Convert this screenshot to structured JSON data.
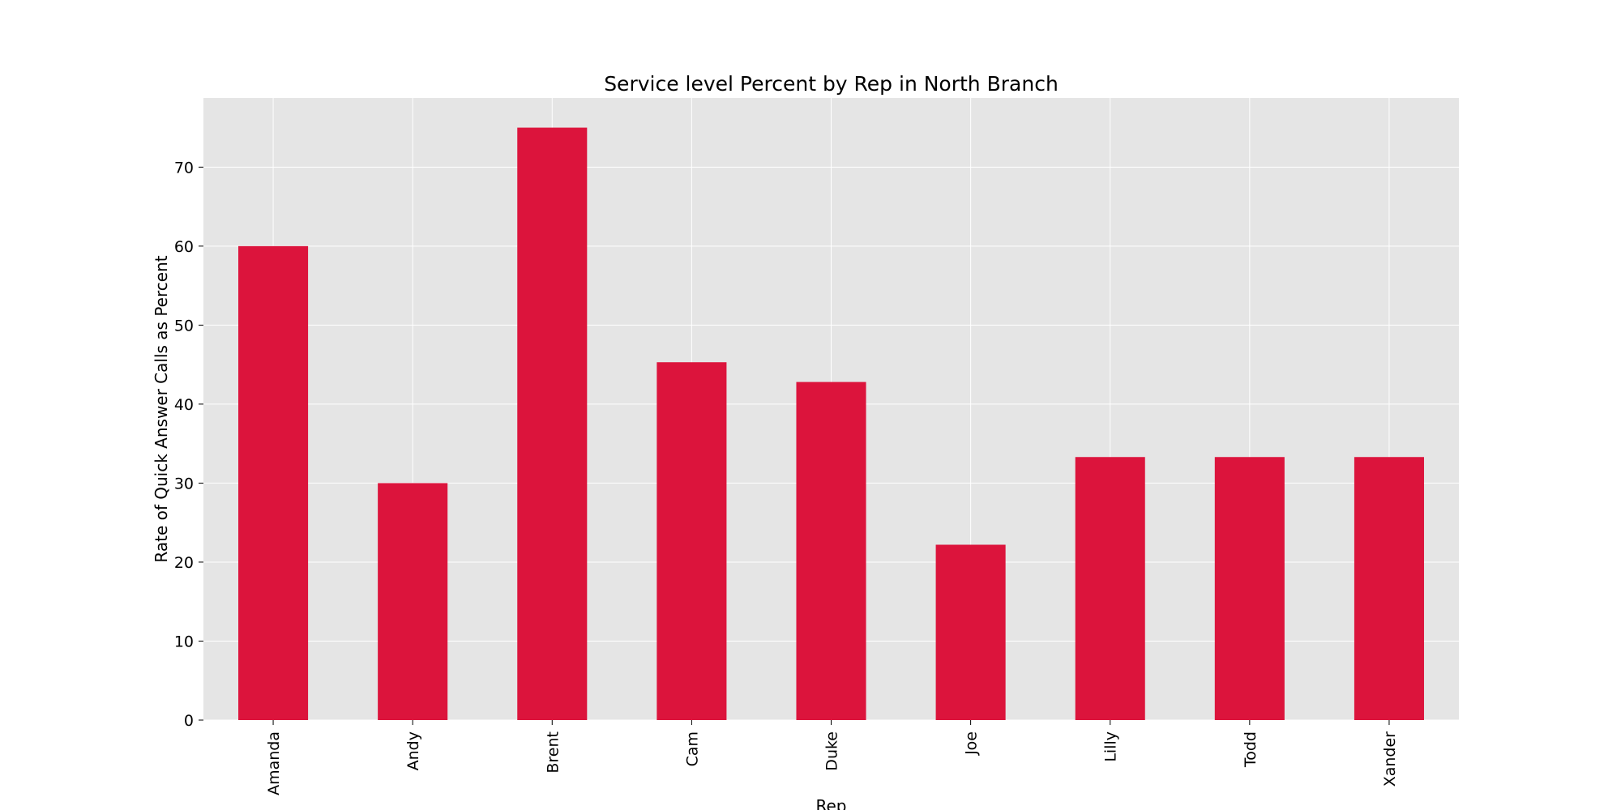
{
  "chart_data": {
    "type": "bar",
    "title": "Service level Percent by Rep in North Branch",
    "xlabel": "Rep",
    "ylabel": "Rate of Quick Answer Calls as Percent",
    "categories": [
      "Amanda",
      "Andy",
      "Brent",
      "Cam",
      "Duke",
      "Joe",
      "Lilly",
      "Todd",
      "Xander"
    ],
    "values": [
      60.0,
      30.0,
      75.0,
      45.3,
      42.8,
      22.2,
      33.3,
      33.3,
      33.3
    ],
    "ylim": [
      0,
      78.75
    ],
    "yticks": [
      0,
      10,
      20,
      30,
      40,
      50,
      60,
      70
    ],
    "grid": true,
    "legend": "none",
    "colors": {
      "bar": "#dc143c",
      "plot_background": "#e5e5e5",
      "grid": "#ffffff"
    }
  }
}
